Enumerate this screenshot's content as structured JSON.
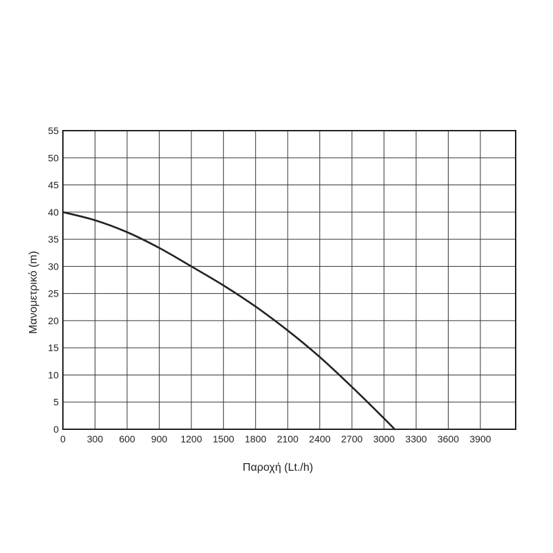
{
  "chart_data": {
    "type": "line",
    "xlabel": "Παροχή (Lt./h)",
    "ylabel": "Μανομετρικό  (m)",
    "xlim": [
      0,
      4230
    ],
    "ylim": [
      0,
      55
    ],
    "x_ticks": [
      0,
      300,
      600,
      900,
      1200,
      1500,
      1800,
      2100,
      2400,
      2700,
      3000,
      3300,
      3600,
      3900
    ],
    "y_ticks": [
      0,
      5,
      10,
      15,
      20,
      25,
      30,
      35,
      40,
      45,
      50,
      55
    ],
    "grid": true,
    "series": [
      {
        "x": [
          0,
          300,
          600,
          900,
          1200,
          1500,
          1800,
          2100,
          2400,
          2700,
          3000,
          3100
        ],
        "y": [
          40,
          38.5,
          36.3,
          33.4,
          30,
          26.5,
          22.6,
          18.2,
          13.3,
          7.8,
          2,
          0
        ],
        "color": "#222222"
      }
    ]
  }
}
